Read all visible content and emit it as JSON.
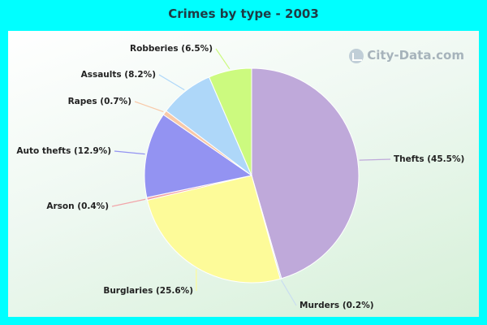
{
  "title": "Crimes by type - 2003",
  "watermark": "City-Data.com",
  "chart_data": {
    "type": "pie",
    "title": "Crimes by type - 2003",
    "start_angle_deg": 0,
    "direction": "clockwise",
    "slices": [
      {
        "label": "Thefts (45.5%)",
        "name": "Thefts",
        "value": 45.5,
        "color": "#bfa9da"
      },
      {
        "label": "Murders (0.2%)",
        "name": "Murders",
        "value": 0.2,
        "color": "#c9ddf1"
      },
      {
        "label": "Burglaries (25.6%)",
        "name": "Burglaries",
        "value": 25.6,
        "color": "#fdfb99"
      },
      {
        "label": "Arson (0.4%)",
        "name": "Arson",
        "value": 0.4,
        "color": "#f2a6aa"
      },
      {
        "label": "Auto thefts (12.9%)",
        "name": "Auto thefts",
        "value": 12.9,
        "color": "#9393f2"
      },
      {
        "label": "Rapes (0.7%)",
        "name": "Rapes",
        "value": 0.7,
        "color": "#f8c9a8"
      },
      {
        "label": "Assaults (8.2%)",
        "name": "Assaults",
        "value": 8.2,
        "color": "#aed7f9"
      },
      {
        "label": "Robberies (6.5%)",
        "name": "Robberies",
        "value": 6.5,
        "color": "#ccfa7f"
      }
    ]
  }
}
